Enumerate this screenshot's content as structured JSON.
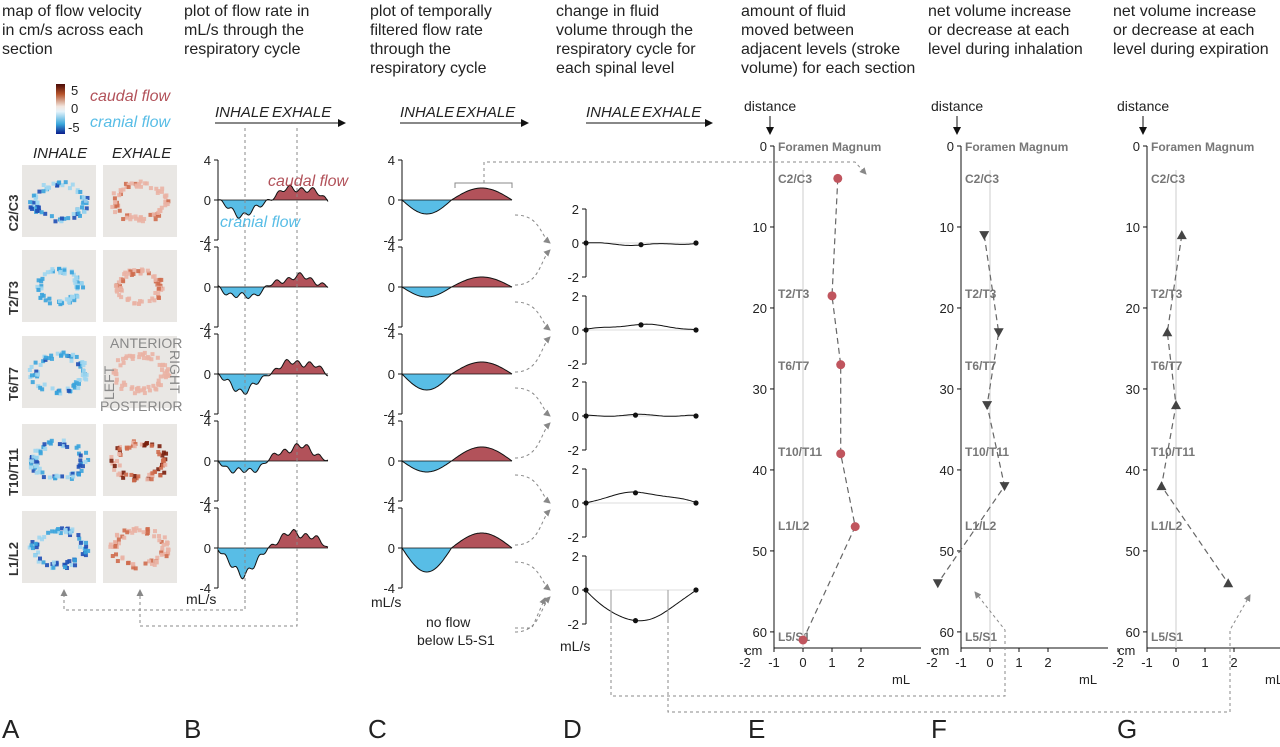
{
  "colors": {
    "caudal": "#b2525a",
    "cranial": "#58bde6",
    "gray": "#7a7a7a",
    "caudal_pt": "#c0555e",
    "tri": "#444444"
  },
  "panels": {
    "A": {
      "letter": "A",
      "title": [
        "map of flow velocity",
        "in cm/s across each",
        "section"
      ],
      "col_inhale": "INHALE",
      "col_exhale": "EXHALE",
      "colorbar": {
        "max": "5",
        "mid": "0",
        "min": "-5",
        "caudal_label": "caudal flow",
        "cranial_label": "cranial flow"
      },
      "orientation": {
        "anterior": "ANTERIOR",
        "posterior": "POSTERIOR",
        "left": "LEFT",
        "right": "RIGHT"
      }
    },
    "B": {
      "letter": "B",
      "title": [
        "plot of flow rate in",
        "mL/s through the",
        "respiratory cycle"
      ],
      "inhale": "INHALE",
      "exhale": "EXHALE",
      "unit": "mL/s",
      "caudal_label": "caudal flow",
      "cranial_label": "cranial flow",
      "yticks": [
        "4",
        "0",
        "-4"
      ]
    },
    "C": {
      "letter": "C",
      "title": [
        "plot of temporally",
        "filtered flow rate",
        "through the",
        "respiratory cycle"
      ],
      "inhale": "INHALE",
      "exhale": "EXHALE",
      "unit": "mL/s",
      "yticks": [
        "4",
        "0",
        "-4"
      ],
      "note": [
        "no flow",
        "below L5-S1"
      ]
    },
    "D": {
      "letter": "D",
      "title": [
        "change in fluid",
        "volume through the",
        "respiratory cycle for",
        "each spinal level"
      ],
      "inhale": "INHALE",
      "exhale": "EXHALE",
      "unit": "mL/s",
      "yticks": [
        "2",
        "0",
        "-2"
      ]
    },
    "E": {
      "letter": "E",
      "title": [
        "amount of fluid",
        "moved between",
        "adjacent levels (stroke",
        "volume) for each section"
      ],
      "distance": "distance",
      "top_label": "Foramen Magnum",
      "unit_x": "mL",
      "unit_y": "cm"
    },
    "F": {
      "letter": "F",
      "title": [
        "net volume increase",
        "or decrease at each",
        "level during inhalation"
      ],
      "distance": "distance",
      "top_label": "Foramen Magnum",
      "unit_x": "mL",
      "unit_y": "cm"
    },
    "G": {
      "letter": "G",
      "title": [
        "net volume increase",
        "or decrease at each",
        "level during expiration"
      ],
      "distance": "distance",
      "top_label": "Foramen Magnum",
      "unit_x": "mL",
      "unit_y": "cm"
    }
  },
  "levels": [
    "C2/C3",
    "T2/T3",
    "T6/T7",
    "T10/T11",
    "L1/L2"
  ],
  "profile_levels": [
    "C2/C3",
    "T2/T3",
    "T6/T7",
    "T10/T11",
    "L1/L2",
    "L5/S1"
  ],
  "profile_axis": {
    "yticks": [
      "0",
      "10",
      "20",
      "30",
      "40",
      "50",
      "60"
    ],
    "xticks": [
      "-2",
      "-1",
      "0",
      "1",
      "2"
    ]
  },
  "chart_data": [
    {
      "type": "scatter",
      "panel": "E",
      "xlabel": "mL",
      "ylabel": "cm",
      "labels": [
        "C2/C3",
        "T2/T3",
        "T6/T7",
        "T10/T11",
        "L1/L2",
        "L5/S1"
      ],
      "x": [
        1.2,
        1.0,
        1.3,
        1.3,
        1.8,
        0.0
      ],
      "y": [
        4,
        18.5,
        27,
        38,
        47,
        61
      ],
      "xlim": [
        -2,
        2
      ],
      "ylim": [
        0,
        61
      ]
    },
    {
      "type": "scatter",
      "panel": "F",
      "xlabel": "mL",
      "ylabel": "cm",
      "labels": [
        "C2/C3",
        "T2/T3",
        "T6/T7",
        "T10/T11",
        "L1/L2"
      ],
      "x": [
        -0.2,
        0.3,
        -0.1,
        0.5,
        -1.8
      ],
      "y": [
        11,
        23,
        32,
        42,
        54
      ],
      "xlim": [
        -2,
        2
      ],
      "ylim": [
        0,
        61
      ]
    },
    {
      "type": "scatter",
      "panel": "G",
      "xlabel": "mL",
      "ylabel": "cm",
      "labels": [
        "C2/C3",
        "T2/T3",
        "T6/T7",
        "T10/T11",
        "L1/L2"
      ],
      "x": [
        0.2,
        -0.3,
        0.0,
        -0.5,
        1.8
      ],
      "y": [
        11,
        23,
        32,
        42,
        54
      ],
      "xlim": [
        -2,
        2
      ],
      "ylim": [
        0,
        61
      ]
    },
    {
      "type": "line",
      "panel": "D",
      "xlabel": "",
      "ylabel": "mL/s",
      "series": [
        {
          "x": [
            0,
            0.5,
            1
          ],
          "values": [
            0,
            -0.1,
            0
          ]
        },
        {
          "x": [
            0,
            0.5,
            1
          ],
          "values": [
            0,
            0.3,
            0
          ]
        },
        {
          "x": [
            0,
            0.45,
            1
          ],
          "values": [
            0,
            0.05,
            0
          ]
        },
        {
          "x": [
            0,
            0.45,
            1
          ],
          "values": [
            0,
            0.6,
            0
          ]
        },
        {
          "x": [
            0,
            0.45,
            1
          ],
          "values": [
            0,
            -1.8,
            0
          ]
        }
      ],
      "ylim": [
        -2,
        2
      ]
    }
  ]
}
